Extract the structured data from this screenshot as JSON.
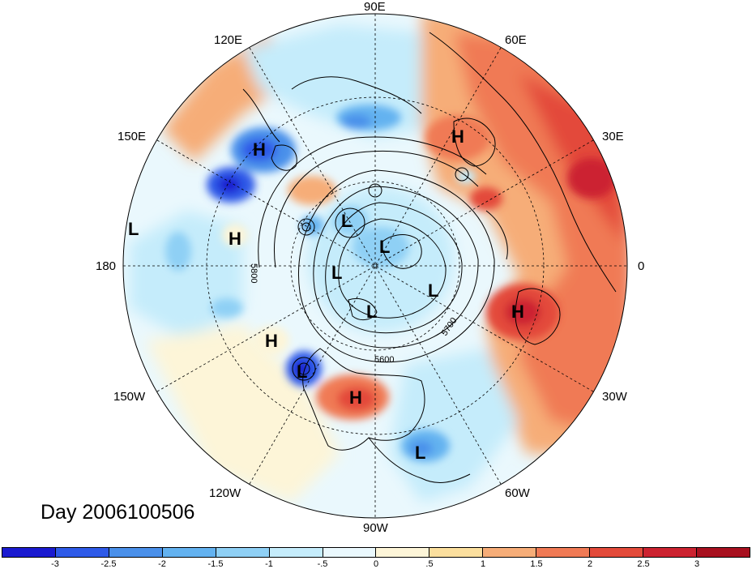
{
  "map": {
    "projection": "north-polar-stereographic",
    "day_label": "Day 2006100506",
    "longitude_labels": [
      {
        "text": "90E",
        "angle": 90
      },
      {
        "text": "60E",
        "angle": 60
      },
      {
        "text": "30E",
        "angle": 30
      },
      {
        "text": "0",
        "angle": 0
      },
      {
        "text": "30W",
        "angle": -30
      },
      {
        "text": "60W",
        "angle": -60
      },
      {
        "text": "90W",
        "angle": -90
      },
      {
        "text": "120W",
        "angle": -120
      },
      {
        "text": "150W",
        "angle": -150
      },
      {
        "text": "180",
        "angle": 180
      },
      {
        "text": "150E",
        "angle": 150
      },
      {
        "text": "120E",
        "angle": 120
      }
    ],
    "contour_labels": [
      "5600",
      "5700",
      "5800"
    ],
    "pressure_centers": [
      {
        "type": "H",
        "label": "H"
      },
      {
        "type": "H",
        "label": "H"
      },
      {
        "type": "H",
        "label": "H"
      },
      {
        "type": "H",
        "label": "H"
      },
      {
        "type": "H",
        "label": "H"
      },
      {
        "type": "H",
        "label": "H"
      },
      {
        "type": "L",
        "label": "L"
      },
      {
        "type": "L",
        "label": "L"
      },
      {
        "type": "L",
        "label": "L"
      },
      {
        "type": "L",
        "label": "L"
      },
      {
        "type": "L",
        "label": "L"
      },
      {
        "type": "L",
        "label": "L"
      },
      {
        "type": "L",
        "label": "L"
      },
      {
        "type": "L",
        "label": "L"
      }
    ]
  },
  "colorbar": {
    "colors": [
      "#1a1ad0",
      "#2e5ae8",
      "#4a90ea",
      "#63b2f0",
      "#8fd0f5",
      "#c5ecfb",
      "#eaf8fd",
      "#fdf5d8",
      "#fbdf9e",
      "#f6ad78",
      "#f07a55",
      "#e34a3a",
      "#cc2230",
      "#a8101f"
    ],
    "ticks": [
      "-3",
      "-2.5",
      "-2",
      "-1.5",
      "-1",
      "-.5",
      "0",
      ".5",
      "1",
      "1.5",
      "2",
      "2.5",
      "3"
    ]
  }
}
